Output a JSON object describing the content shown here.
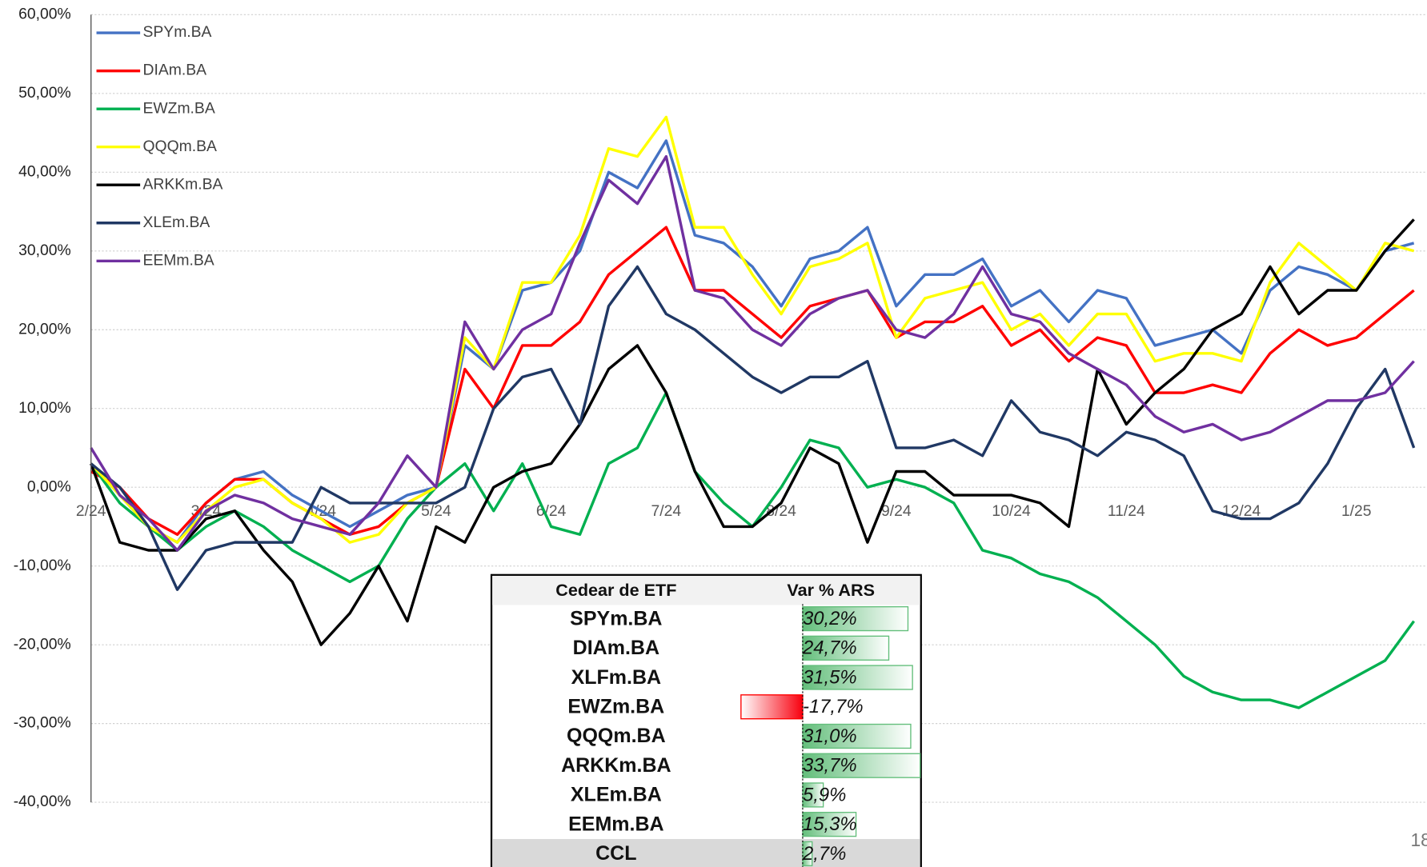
{
  "chart_data": {
    "type": "line",
    "categories": [
      "2/24",
      null,
      null,
      null,
      "3/24",
      null,
      null,
      null,
      "4/24",
      null,
      null,
      null,
      "5/24",
      null,
      null,
      null,
      "6/24",
      null,
      null,
      null,
      "7/24",
      null,
      null,
      null,
      "8/24",
      null,
      null,
      null,
      "9/24",
      null,
      null,
      null,
      "10/24",
      null,
      null,
      null,
      "11/24",
      null,
      null,
      null,
      "12/24",
      null,
      null,
      null,
      "1/25",
      null,
      null
    ],
    "ylim": [
      -40,
      60
    ],
    "yticks": [
      {
        "value": -40,
        "label": "-40,00%"
      },
      {
        "value": -30,
        "label": "-30,00%"
      },
      {
        "value": -20,
        "label": "-20,00%"
      },
      {
        "value": -10,
        "label": "-10,00%"
      },
      {
        "value": 0,
        "label": "0,00%"
      },
      {
        "value": 10,
        "label": "10,00%"
      },
      {
        "value": 20,
        "label": "20,00%"
      },
      {
        "value": 30,
        "label": "30,00%"
      },
      {
        "value": 40,
        "label": "40,00%"
      },
      {
        "value": 50,
        "label": "50,00%"
      },
      {
        "value": 60,
        "label": "60,00%"
      }
    ],
    "grid": true,
    "legend": "top-left",
    "series": [
      {
        "name": "SPYm.BA",
        "color": "#4472c4",
        "values": [
          3,
          -1,
          -5,
          -7,
          -2,
          1,
          2,
          -1,
          -3,
          -5,
          -3,
          -1,
          0,
          18,
          15,
          25,
          26,
          30,
          40,
          38,
          44,
          32,
          31,
          28,
          23,
          29,
          30,
          33,
          23,
          27,
          27,
          29,
          23,
          25,
          21,
          25,
          24,
          18,
          19,
          20,
          17,
          25,
          28,
          27,
          25,
          30,
          31
        ]
      },
      {
        "name": "DIAm.BA",
        "color": "#ff0000",
        "values": [
          2,
          0,
          -4,
          -6,
          -2,
          1,
          1,
          -2,
          -4,
          -6,
          -5,
          -2,
          0,
          15,
          10,
          18,
          18,
          21,
          27,
          30,
          33,
          25,
          25,
          22,
          19,
          23,
          24,
          25,
          19,
          21,
          21,
          23,
          18,
          20,
          16,
          19,
          18,
          12,
          12,
          13,
          12,
          17,
          20,
          18,
          19,
          22,
          25
        ]
      },
      {
        "name": "EWZm.BA",
        "color": "#00b050",
        "values": [
          3,
          -2,
          -5,
          -8,
          -5,
          -3,
          -5,
          -8,
          -10,
          -12,
          -10,
          -4,
          0,
          3,
          -3,
          3,
          -5,
          -6,
          3,
          5,
          12,
          2,
          -2,
          -5,
          0,
          6,
          5,
          0,
          1,
          0,
          -2,
          -8,
          -9,
          -11,
          -12,
          -14,
          -17,
          -20,
          -24,
          -26,
          -27,
          -27,
          -28,
          -26,
          -24,
          -22,
          -17
        ]
      },
      {
        "name": "QQQm.BA",
        "color": "#ffff00",
        "values": [
          3,
          -1,
          -5,
          -7,
          -3,
          0,
          1,
          -2,
          -4,
          -7,
          -6,
          -2,
          0,
          19,
          15,
          26,
          26,
          32,
          43,
          42,
          47,
          33,
          33,
          27,
          22,
          28,
          29,
          31,
          19,
          24,
          25,
          26,
          20,
          22,
          18,
          22,
          22,
          16,
          17,
          17,
          16,
          26,
          31,
          28,
          25,
          31,
          30
        ]
      },
      {
        "name": "ARKKm.BA",
        "color": "#000000",
        "values": [
          3,
          -7,
          -8,
          -8,
          -4,
          -3,
          -8,
          -12,
          -20,
          -16,
          -10,
          -17,
          -5,
          -7,
          0,
          2,
          3,
          8,
          15,
          18,
          12,
          2,
          -5,
          -5,
          -2,
          5,
          3,
          -7,
          2,
          2,
          -1,
          -1,
          -1,
          -2,
          -5,
          15,
          8,
          12,
          15,
          20,
          22,
          28,
          22,
          25,
          25,
          30,
          34
        ]
      },
      {
        "name": "XLEm.BA",
        "color": "#203864",
        "values": [
          3,
          0,
          -5,
          -13,
          -8,
          -7,
          -7,
          -7,
          0,
          -2,
          -2,
          -2,
          -2,
          0,
          10,
          14,
          15,
          8,
          23,
          28,
          22,
          20,
          17,
          14,
          12,
          14,
          14,
          16,
          5,
          5,
          6,
          4,
          11,
          7,
          6,
          4,
          7,
          6,
          4,
          -3,
          -4,
          -4,
          -2,
          3,
          10,
          15,
          5
        ]
      },
      {
        "name": "EEMm.BA",
        "color": "#7030a0",
        "values": [
          5,
          -1,
          -4,
          -8,
          -3,
          -1,
          -2,
          -4,
          -5,
          -6,
          -2,
          4,
          0,
          21,
          15,
          20,
          22,
          31,
          39,
          36,
          42,
          25,
          24,
          20,
          18,
          22,
          24,
          25,
          20,
          19,
          22,
          28,
          22,
          21,
          17,
          15,
          13,
          9,
          7,
          8,
          6,
          7,
          9,
          11,
          11,
          12,
          16
        ]
      }
    ]
  },
  "table": {
    "header": [
      "Cedear de ETF",
      "Var % ARS"
    ],
    "names": [
      "SPYm.BA",
      "DIAm.BA",
      "XLFm.BA",
      "EWZm.BA",
      "QQQm.BA",
      "ARKKm.BA",
      "XLEm.BA",
      "EEMm.BA",
      "CCL"
    ],
    "values": [
      30.2,
      24.7,
      31.5,
      -17.7,
      31.0,
      33.7,
      5.9,
      15.3,
      2.7
    ],
    "value_labels": [
      "30,2%",
      "24,7%",
      "31,5%",
      "-17,7%",
      "31,0%",
      "33,7%",
      "5,9%",
      "15,3%",
      "2,7%"
    ]
  },
  "page_number": "18"
}
